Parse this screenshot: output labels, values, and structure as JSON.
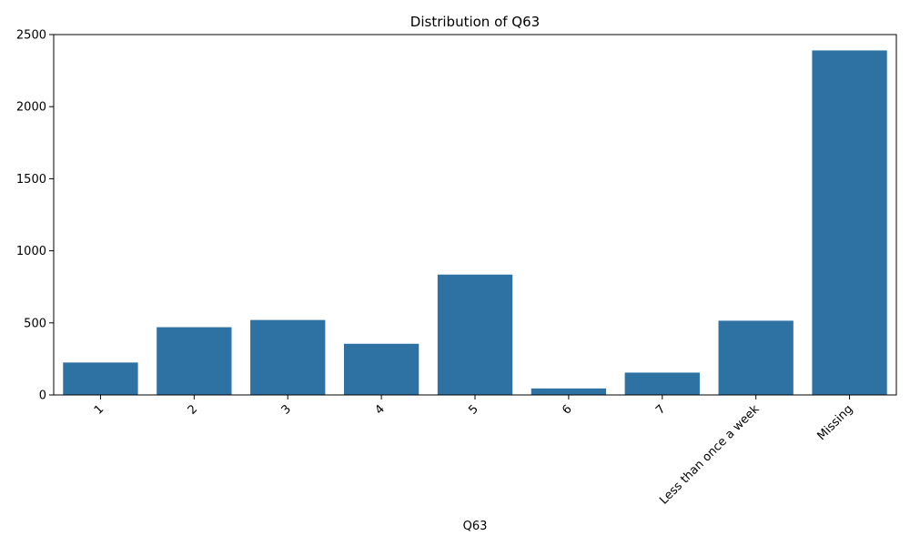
{
  "chart_data": {
    "type": "bar",
    "title": "Distribution of Q63",
    "xlabel": "Q63",
    "ylabel": "",
    "categories": [
      "1",
      "2",
      "3",
      "4",
      "5",
      "6",
      "7",
      "Less than once a week",
      "Missing"
    ],
    "values": [
      225,
      470,
      520,
      355,
      835,
      45,
      155,
      515,
      2390
    ],
    "ylim": [
      0,
      2500
    ],
    "yticks": [
      "0",
      "500",
      "1000",
      "1500",
      "2000",
      "2500"
    ],
    "bar_color": "#2e72a4",
    "grid": false,
    "legend": "none"
  }
}
